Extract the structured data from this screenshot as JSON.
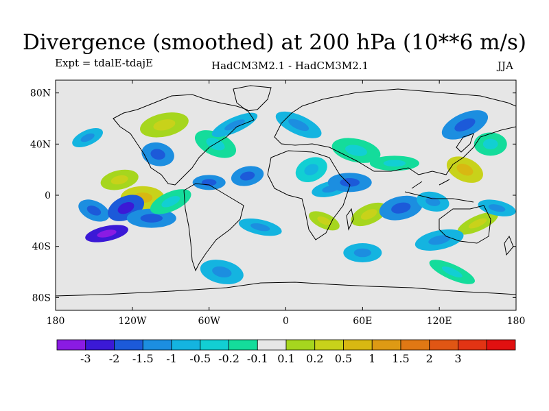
{
  "title": "Divergence (smoothed) at 200 hPa (10**6 m/s)",
  "experiment_label": "Expt = tdalE-tdajE",
  "models_label": "HadCM3M2.1 - HadCM3M2.1",
  "season_label": "JJA",
  "map": {
    "projection": "cylindrical-equidistant",
    "lon_range": [
      -180,
      180
    ],
    "lat_range": [
      -90,
      90
    ],
    "lat_ticks": [
      {
        "value": 80,
        "label": "80N"
      },
      {
        "value": 40,
        "label": "40N"
      },
      {
        "value": 0,
        "label": "0"
      },
      {
        "value": -40,
        "label": "40S"
      },
      {
        "value": -80,
        "label": "80S"
      }
    ],
    "lon_ticks": [
      {
        "value": -180,
        "label": "180"
      },
      {
        "value": -120,
        "label": "120W"
      },
      {
        "value": -60,
        "label": "60W"
      },
      {
        "value": 0,
        "label": "0"
      },
      {
        "value": 60,
        "label": "60E"
      },
      {
        "value": 120,
        "label": "120E"
      },
      {
        "value": 180,
        "label": "180"
      }
    ],
    "background_color": "#e6e6e6",
    "features": [
      {
        "lon": -155,
        "lat": 45,
        "level": 4
      },
      {
        "lon": -130,
        "lat": 12,
        "level": 8
      },
      {
        "lon": -112,
        "lat": -2,
        "level": 9
      },
      {
        "lon": -160,
        "lat": 5,
        "level": 7
      },
      {
        "lon": -150,
        "lat": -12,
        "level": 3
      },
      {
        "lon": -125,
        "lat": -10,
        "level": 2
      },
      {
        "lon": -140,
        "lat": -30,
        "level": 1
      },
      {
        "lon": -105,
        "lat": -18,
        "level": 3
      },
      {
        "lon": -100,
        "lat": 32,
        "level": 3
      },
      {
        "lon": -80,
        "lat": 15,
        "level": 7
      },
      {
        "lon": -90,
        "lat": -5,
        "level": 6
      },
      {
        "lon": -95,
        "lat": 55,
        "level": 8
      },
      {
        "lon": -60,
        "lat": 10,
        "level": 3
      },
      {
        "lon": -70,
        "lat": -25,
        "level": 7
      },
      {
        "lon": -55,
        "lat": 40,
        "level": 6
      },
      {
        "lon": -40,
        "lat": 55,
        "level": 4
      },
      {
        "lon": -30,
        "lat": 15,
        "level": 3
      },
      {
        "lon": -25,
        "lat": -5,
        "level": 7
      },
      {
        "lon": -20,
        "lat": -25,
        "level": 4
      },
      {
        "lon": 10,
        "lat": 55,
        "level": 4
      },
      {
        "lon": 20,
        "lat": 20,
        "level": 5
      },
      {
        "lon": 35,
        "lat": 5,
        "level": 4
      },
      {
        "lon": 50,
        "lat": 10,
        "level": 3
      },
      {
        "lon": 55,
        "lat": 35,
        "level": 6
      },
      {
        "lon": 30,
        "lat": -20,
        "level": 8
      },
      {
        "lon": 65,
        "lat": -15,
        "level": 8
      },
      {
        "lon": 90,
        "lat": -10,
        "level": 3
      },
      {
        "lon": 85,
        "lat": 25,
        "level": 6
      },
      {
        "lon": 115,
        "lat": -5,
        "level": 4
      },
      {
        "lon": 140,
        "lat": 20,
        "level": 9
      },
      {
        "lon": 150,
        "lat": -22,
        "level": 8
      },
      {
        "lon": 120,
        "lat": -35,
        "level": 4
      },
      {
        "lon": 160,
        "lat": 40,
        "level": 6
      },
      {
        "lon": 165,
        "lat": -10,
        "level": 4
      },
      {
        "lon": 100,
        "lat": 55,
        "level": 7
      },
      {
        "lon": 140,
        "lat": 55,
        "level": 3
      },
      {
        "lon": -10,
        "lat": -40,
        "level": 7
      },
      {
        "lon": 60,
        "lat": -45,
        "level": 4
      },
      {
        "lon": -50,
        "lat": -60,
        "level": 4
      },
      {
        "lon": 130,
        "lat": -60,
        "level": 6
      }
    ]
  },
  "colorbar": {
    "colors": [
      "#8a1be3",
      "#3b19d6",
      "#1c5ad9",
      "#1c8ee0",
      "#14b4e0",
      "#12cfd3",
      "#14dc9b",
      "#e6e6e6",
      "#a6d61e",
      "#c8d21a",
      "#d8b812",
      "#de9a14",
      "#e07814",
      "#e05614",
      "#e23414",
      "#e01010"
    ],
    "labels": [
      "-3",
      "-2",
      "-1.5",
      "-1",
      "-0.5",
      "-0.2",
      "-0.1",
      "0.1",
      "0.2",
      "0.5",
      "1",
      "1.5",
      "2",
      "3"
    ]
  }
}
